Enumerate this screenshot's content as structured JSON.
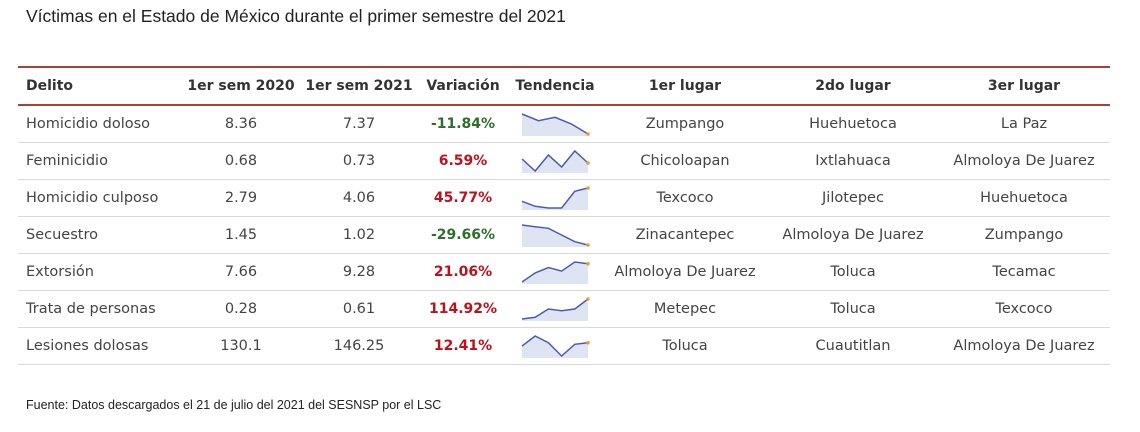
{
  "title": "Víctimas en el Estado de México durante el primer semestre del 2021",
  "footer": "Fuente: Datos descargados el 21 de julio del 2021 del SESNSP por el LSC",
  "colors": {
    "header_border": "#a8413a",
    "negative": "#2e6f2b",
    "positive": "#c0101b",
    "spark_line": "#4a5bb5",
    "spark_fill": "#dfe4f2",
    "spark_end": "#f39a2e"
  },
  "chart_data": {
    "type": "table",
    "columns": [
      "Delito",
      "1er sem 2020",
      "1er sem 2021",
      "Variación",
      "Tendencia",
      "1er lugar",
      "2do lugar",
      "3er lugar"
    ],
    "rows": [
      {
        "delito": "Homicidio doloso",
        "sem2020": "8.36",
        "sem2021": "7.37",
        "variacion": "-11.84%",
        "trend": [
          7,
          5,
          6,
          4,
          1
        ],
        "lugar1": "Zumpango",
        "lugar2": "Huehuetoca",
        "lugar3": "La Paz"
      },
      {
        "delito": "Feminicidio",
        "sem2020": "0.68",
        "sem2021": "0.73",
        "variacion": "6.59%",
        "trend": [
          4,
          1,
          5,
          2,
          6,
          3
        ],
        "lugar1": "Chicoloapan",
        "lugar2": "Ixtlahuaca",
        "lugar3": "Almoloya De Juarez"
      },
      {
        "delito": "Homicidio culposo",
        "sem2020": "2.79",
        "sem2021": "4.06",
        "variacion": "45.77%",
        "trend": [
          3,
          1.5,
          1,
          1,
          6,
          7
        ],
        "lugar1": "Texcoco",
        "lugar2": "Jilotepec",
        "lugar3": "Huehuetoca"
      },
      {
        "delito": "Secuestro",
        "sem2020": "1.45",
        "sem2021": "1.02",
        "variacion": "-29.66%",
        "trend": [
          7,
          6.5,
          6,
          4,
          2,
          1
        ],
        "lugar1": "Zinacantepec",
        "lugar2": "Almoloya De Juarez",
        "lugar3": "Zumpango"
      },
      {
        "delito": "Extorsión",
        "sem2020": "7.66",
        "sem2021": "9.28",
        "variacion": "21.06%",
        "trend": [
          1,
          3.5,
          5,
          4,
          6.5,
          6
        ],
        "lugar1": "Almoloya De Juarez",
        "lugar2": "Toluca",
        "lugar3": "Tecamac"
      },
      {
        "delito": "Trata de personas",
        "sem2020": "0.28",
        "sem2021": "0.61",
        "variacion": "114.92%",
        "trend": [
          1,
          1.5,
          4,
          3.5,
          4,
          7
        ],
        "lugar1": "Metepec",
        "lugar2": "Toluca",
        "lugar3": "Texcoco"
      },
      {
        "delito": "Lesiones dolosas",
        "sem2020": "130.1",
        "sem2021": "146.25",
        "variacion": "12.41%",
        "trend": [
          4,
          7,
          5,
          1,
          4.5,
          5
        ],
        "lugar1": "Toluca",
        "lugar2": "Cuautitlan",
        "lugar3": "Almoloya De Juarez"
      }
    ]
  }
}
